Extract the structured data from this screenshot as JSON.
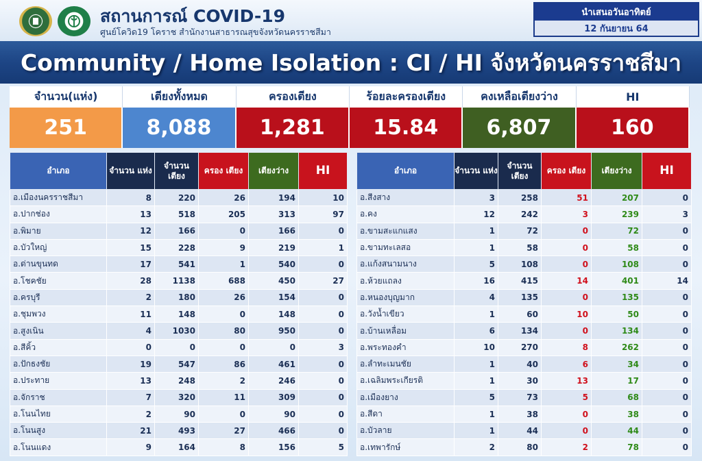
{
  "header": {
    "title": "สถานการณ์ COVID-19",
    "subtitle": "ศูนย์โควิด19 โคราช สำนักงานสาธารณสุขจังหวัดนครราชสีมา",
    "present_label": "นำเสนอวันอาทิตย์",
    "present_date": "12 กันยายน 64"
  },
  "banner": "Community / Home Isolation : CI / HI จังหวัดนครราชสีมา",
  "summary": [
    {
      "label": "จำนวน(แห่ง)",
      "value": "251",
      "color": "#f39a48"
    },
    {
      "label": "เตียงทั้งหมด",
      "value": "8,088",
      "color": "#4d86cf"
    },
    {
      "label": "ครองเตียง",
      "value": "1,281",
      "color": "#b9101b"
    },
    {
      "label": "ร้อยละครองเตียง",
      "value": "15.84",
      "color": "#b9101b"
    },
    {
      "label": "คงเหลือเตียงว่าง",
      "value": "6,807",
      "color": "#3f5f22"
    },
    {
      "label": "HI",
      "value": "160",
      "color": "#b9101b"
    }
  ],
  "columns": {
    "name": "อำเภอ",
    "units": "จำนวน แห่ง",
    "beds": "จำนวน เตียง",
    "occupied": "ครอง เตียง",
    "available": "เตียงว่าง",
    "hi": "HI"
  },
  "left_rows": [
    {
      "name": "อ.เมืองนครราชสีมา",
      "units": "8",
      "beds": "220",
      "occupied": "26",
      "available": "194",
      "hi": "10"
    },
    {
      "name": "อ.ปากช่อง",
      "units": "13",
      "beds": "518",
      "occupied": "205",
      "available": "313",
      "hi": "97"
    },
    {
      "name": "อ.พิมาย",
      "units": "12",
      "beds": "166",
      "occupied": "0",
      "available": "166",
      "hi": "0"
    },
    {
      "name": "อ.บัวใหญ่",
      "units": "15",
      "beds": "228",
      "occupied": "9",
      "available": "219",
      "hi": "1"
    },
    {
      "name": "อ.ด่านขุนทด",
      "units": "17",
      "beds": "541",
      "occupied": "1",
      "available": "540",
      "hi": "0"
    },
    {
      "name": "อ.โชคชัย",
      "units": "28",
      "beds": "1138",
      "occupied": "688",
      "available": "450",
      "hi": "27"
    },
    {
      "name": "อ.ครบุรี",
      "units": "2",
      "beds": "180",
      "occupied": "26",
      "available": "154",
      "hi": "0"
    },
    {
      "name": "อ.ชุมพวง",
      "units": "11",
      "beds": "148",
      "occupied": "0",
      "available": "148",
      "hi": "0"
    },
    {
      "name": "อ.สูงเนิน",
      "units": "4",
      "beds": "1030",
      "occupied": "80",
      "available": "950",
      "hi": "0"
    },
    {
      "name": "อ.สีคิ้ว",
      "units": "0",
      "beds": "0",
      "occupied": "0",
      "available": "0",
      "hi": "3"
    },
    {
      "name": "อ.ปักธงชัย",
      "units": "19",
      "beds": "547",
      "occupied": "86",
      "available": "461",
      "hi": "0"
    },
    {
      "name": "อ.ประทาย",
      "units": "13",
      "beds": "248",
      "occupied": "2",
      "available": "246",
      "hi": "0"
    },
    {
      "name": "อ.จักราช",
      "units": "7",
      "beds": "320",
      "occupied": "11",
      "available": "309",
      "hi": "0"
    },
    {
      "name": "อ.โนนไทย",
      "units": "2",
      "beds": "90",
      "occupied": "0",
      "available": "90",
      "hi": "0"
    },
    {
      "name": "อ.โนนสูง",
      "units": "21",
      "beds": "493",
      "occupied": "27",
      "available": "466",
      "hi": "0"
    },
    {
      "name": "อ.โนนแดง",
      "units": "9",
      "beds": "164",
      "occupied": "8",
      "available": "156",
      "hi": "5"
    }
  ],
  "right_rows": [
    {
      "name": "อ.สีงสาง",
      "units": "3",
      "beds": "258",
      "occupied": "51",
      "available": "207",
      "hi": "0"
    },
    {
      "name": "อ.คง",
      "units": "12",
      "beds": "242",
      "occupied": "3",
      "available": "239",
      "hi": "3"
    },
    {
      "name": "อ.ขามสะแกแสง",
      "units": "1",
      "beds": "72",
      "occupied": "0",
      "available": "72",
      "hi": "0"
    },
    {
      "name": "อ.ขามทะเลสอ",
      "units": "1",
      "beds": "58",
      "occupied": "0",
      "available": "58",
      "hi": "0"
    },
    {
      "name": "อ.แก้งสนามนาง",
      "units": "5",
      "beds": "108",
      "occupied": "0",
      "available": "108",
      "hi": "0"
    },
    {
      "name": "อ.ห้วยแถลง",
      "units": "16",
      "beds": "415",
      "occupied": "14",
      "available": "401",
      "hi": "14"
    },
    {
      "name": "อ.หนองบุญมาก",
      "units": "4",
      "beds": "135",
      "occupied": "0",
      "available": "135",
      "hi": "0"
    },
    {
      "name": "อ.วังน้ำเขียว",
      "units": "1",
      "beds": "60",
      "occupied": "10",
      "available": "50",
      "hi": "0"
    },
    {
      "name": "อ.บ้านเหลื่อม",
      "units": "6",
      "beds": "134",
      "occupied": "0",
      "available": "134",
      "hi": "0"
    },
    {
      "name": "อ.พระทองคำ",
      "units": "10",
      "beds": "270",
      "occupied": "8",
      "available": "262",
      "hi": "0"
    },
    {
      "name": "อ.ลำทะเมนชัย",
      "units": "1",
      "beds": "40",
      "occupied": "6",
      "available": "34",
      "hi": "0"
    },
    {
      "name": "อ.เฉลิมพระเกียรติ",
      "units": "1",
      "beds": "30",
      "occupied": "13",
      "available": "17",
      "hi": "0"
    },
    {
      "name": "อ.เมืองยาง",
      "units": "5",
      "beds": "73",
      "occupied": "5",
      "available": "68",
      "hi": "0"
    },
    {
      "name": "อ.สีดา",
      "units": "1",
      "beds": "38",
      "occupied": "0",
      "available": "38",
      "hi": "0"
    },
    {
      "name": "อ.บัวลาย",
      "units": "1",
      "beds": "44",
      "occupied": "0",
      "available": "44",
      "hi": "0"
    },
    {
      "name": "อ.เทพารักษ์",
      "units": "2",
      "beds": "80",
      "occupied": "2",
      "available": "78",
      "hi": "0"
    }
  ]
}
